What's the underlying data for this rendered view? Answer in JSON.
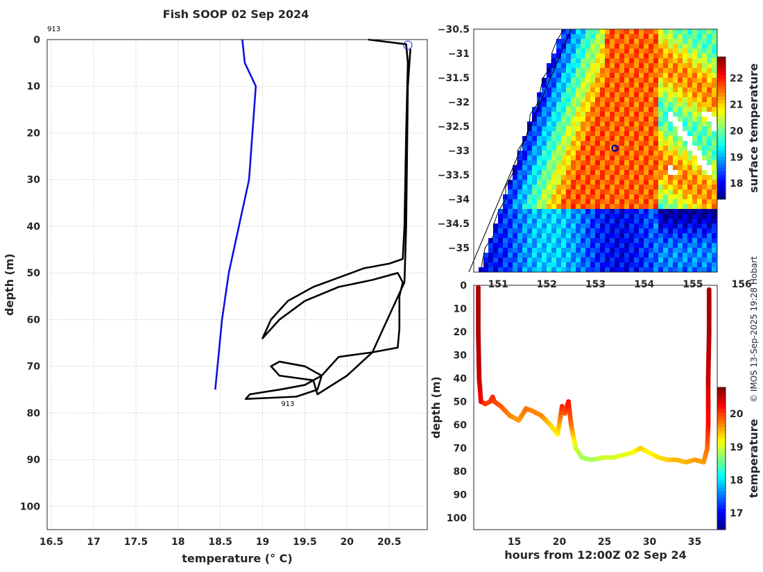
{
  "title": "Fish SOOP 02 Sep 2024",
  "footer": "© IMOS 13-Sep-2025 19:28 Hobart",
  "chart_data": [
    {
      "id": "profile",
      "type": "line",
      "xlabel": "temperature (° C)",
      "ylabel": "depth (m)",
      "xlim": [
        16.45,
        20.95
      ],
      "ylim": [
        105,
        0
      ],
      "xticks": [
        16.5,
        17,
        17.5,
        18,
        18.5,
        19,
        19.5,
        20,
        20.5
      ],
      "yticks": [
        0,
        10,
        20,
        30,
        40,
        50,
        60,
        70,
        80,
        90,
        100
      ],
      "grid": true,
      "top_label": "913",
      "bottom_label": "913",
      "marker": {
        "x": 20.72,
        "y": 1.2
      },
      "series": [
        {
          "color": "#1010e0",
          "points": [
            [
              18.76,
              0
            ],
            [
              18.79,
              5
            ],
            [
              18.92,
              10
            ],
            [
              18.88,
              20
            ],
            [
              18.84,
              30
            ],
            [
              18.72,
              40
            ],
            [
              18.6,
              50
            ],
            [
              18.52,
              60
            ],
            [
              18.44,
              75
            ]
          ]
        },
        {
          "color": "#000000",
          "points": [
            [
              20.25,
              0
            ],
            [
              20.7,
              1
            ],
            [
              20.72,
              5
            ],
            [
              20.7,
              20
            ],
            [
              20.68,
              40
            ],
            [
              20.66,
              47
            ],
            [
              20.5,
              48
            ],
            [
              20.2,
              49
            ],
            [
              19.9,
              51
            ],
            [
              19.6,
              53
            ],
            [
              19.3,
              56
            ],
            [
              19.1,
              60
            ],
            [
              19.0,
              64
            ],
            [
              19.2,
              60
            ],
            [
              19.5,
              56
            ],
            [
              19.9,
              53
            ],
            [
              20.3,
              51.5
            ],
            [
              20.6,
              50
            ],
            [
              20.66,
              52
            ],
            [
              20.62,
              55
            ],
            [
              20.62,
              62
            ],
            [
              20.6,
              66
            ],
            [
              20.3,
              67
            ],
            [
              19.9,
              68
            ],
            [
              19.7,
              72
            ],
            [
              19.5,
              74
            ],
            [
              19.2,
              75
            ],
            [
              18.85,
              76
            ],
            [
              18.8,
              77
            ],
            [
              19.4,
              76.5
            ],
            [
              19.65,
              75
            ],
            [
              19.7,
              72
            ],
            [
              19.5,
              70
            ],
            [
              19.2,
              69
            ],
            [
              19.1,
              70
            ],
            [
              19.2,
              72
            ],
            [
              19.6,
              73
            ],
            [
              19.65,
              76
            ],
            [
              20.0,
              72
            ],
            [
              20.3,
              67
            ],
            [
              20.68,
              52
            ],
            [
              20.7,
              40
            ],
            [
              20.72,
              10
            ],
            [
              20.75,
              2
            ]
          ]
        }
      ]
    },
    {
      "id": "sst_map",
      "type": "heatmap",
      "xlim": [
        150.5,
        155.5
      ],
      "ylim": [
        -35.5,
        -30.5
      ],
      "xticks": [
        151,
        152,
        153,
        154,
        155,
        156
      ],
      "yticks": [
        -30.5,
        -31,
        -31.5,
        -32,
        -32.5,
        -33,
        -33.5,
        -34,
        -34.5,
        -35
      ],
      "colorbar_label": "surface temperature",
      "colorbar_ticks": [
        18,
        19,
        20,
        21,
        22
      ],
      "colorbar_range": [
        17.4,
        22.8
      ],
      "marker": {
        "lon": 153.4,
        "lat": -32.95
      }
    },
    {
      "id": "depth_time",
      "type": "scatter",
      "xlabel": "hours from 12:00Z 02 Sep 24",
      "ylabel": "depth (m)",
      "xlim": [
        10.5,
        37.5
      ],
      "ylim": [
        105,
        0
      ],
      "xticks": [
        15,
        20,
        25,
        30,
        35
      ],
      "yticks": [
        0,
        10,
        20,
        30,
        40,
        50,
        60,
        70,
        80,
        90,
        100
      ],
      "colorbar_label": "temperature",
      "colorbar_ticks": [
        17,
        18,
        19,
        20
      ],
      "colorbar_range": [
        16.5,
        20.8
      ],
      "series": [
        {
          "name": "",
          "points": [
            [
              11.0,
              1,
              20.6
            ],
            [
              11.0,
              20,
              20.6
            ],
            [
              11.1,
              40,
              20.5
            ],
            [
              11.3,
              50,
              20.3
            ],
            [
              11.8,
              51,
              20.0
            ],
            [
              12.3,
              50,
              20.0
            ],
            [
              12.6,
              48,
              20.1
            ],
            [
              12.8,
              50,
              20.0
            ],
            [
              13.5,
              52,
              19.9
            ],
            [
              14.5,
              56,
              19.7
            ],
            [
              15.5,
              58,
              19.6
            ],
            [
              16.3,
              53,
              19.8
            ],
            [
              17,
              54,
              19.7
            ],
            [
              18,
              56,
              19.7
            ],
            [
              19,
              60,
              19.4
            ],
            [
              19.8,
              64,
              19.2
            ],
            [
              20.3,
              52,
              20.1
            ],
            [
              20.6,
              55,
              19.9
            ],
            [
              21.0,
              50,
              20.2
            ],
            [
              21.3,
              60,
              19.8
            ],
            [
              21.8,
              70,
              19.0
            ],
            [
              22.5,
              74,
              18.8
            ],
            [
              23.5,
              75,
              18.8
            ],
            [
              25,
              74,
              19.0
            ],
            [
              26,
              74,
              19.0
            ],
            [
              27,
              73,
              19.1
            ],
            [
              28,
              72,
              19.1
            ],
            [
              29,
              70,
              19.4
            ],
            [
              30,
              72,
              19.2
            ],
            [
              31,
              74,
              19.3
            ],
            [
              32,
              75,
              19.4
            ],
            [
              33,
              75,
              19.5
            ],
            [
              34,
              76,
              19.5
            ],
            [
              35,
              75,
              19.6
            ],
            [
              36,
              76,
              19.6
            ],
            [
              36.4,
              70,
              19.8
            ],
            [
              36.5,
              60,
              20.2
            ],
            [
              36.5,
              40,
              20.5
            ],
            [
              36.6,
              20,
              20.6
            ],
            [
              36.6,
              1,
              20.6
            ]
          ]
        }
      ]
    }
  ]
}
